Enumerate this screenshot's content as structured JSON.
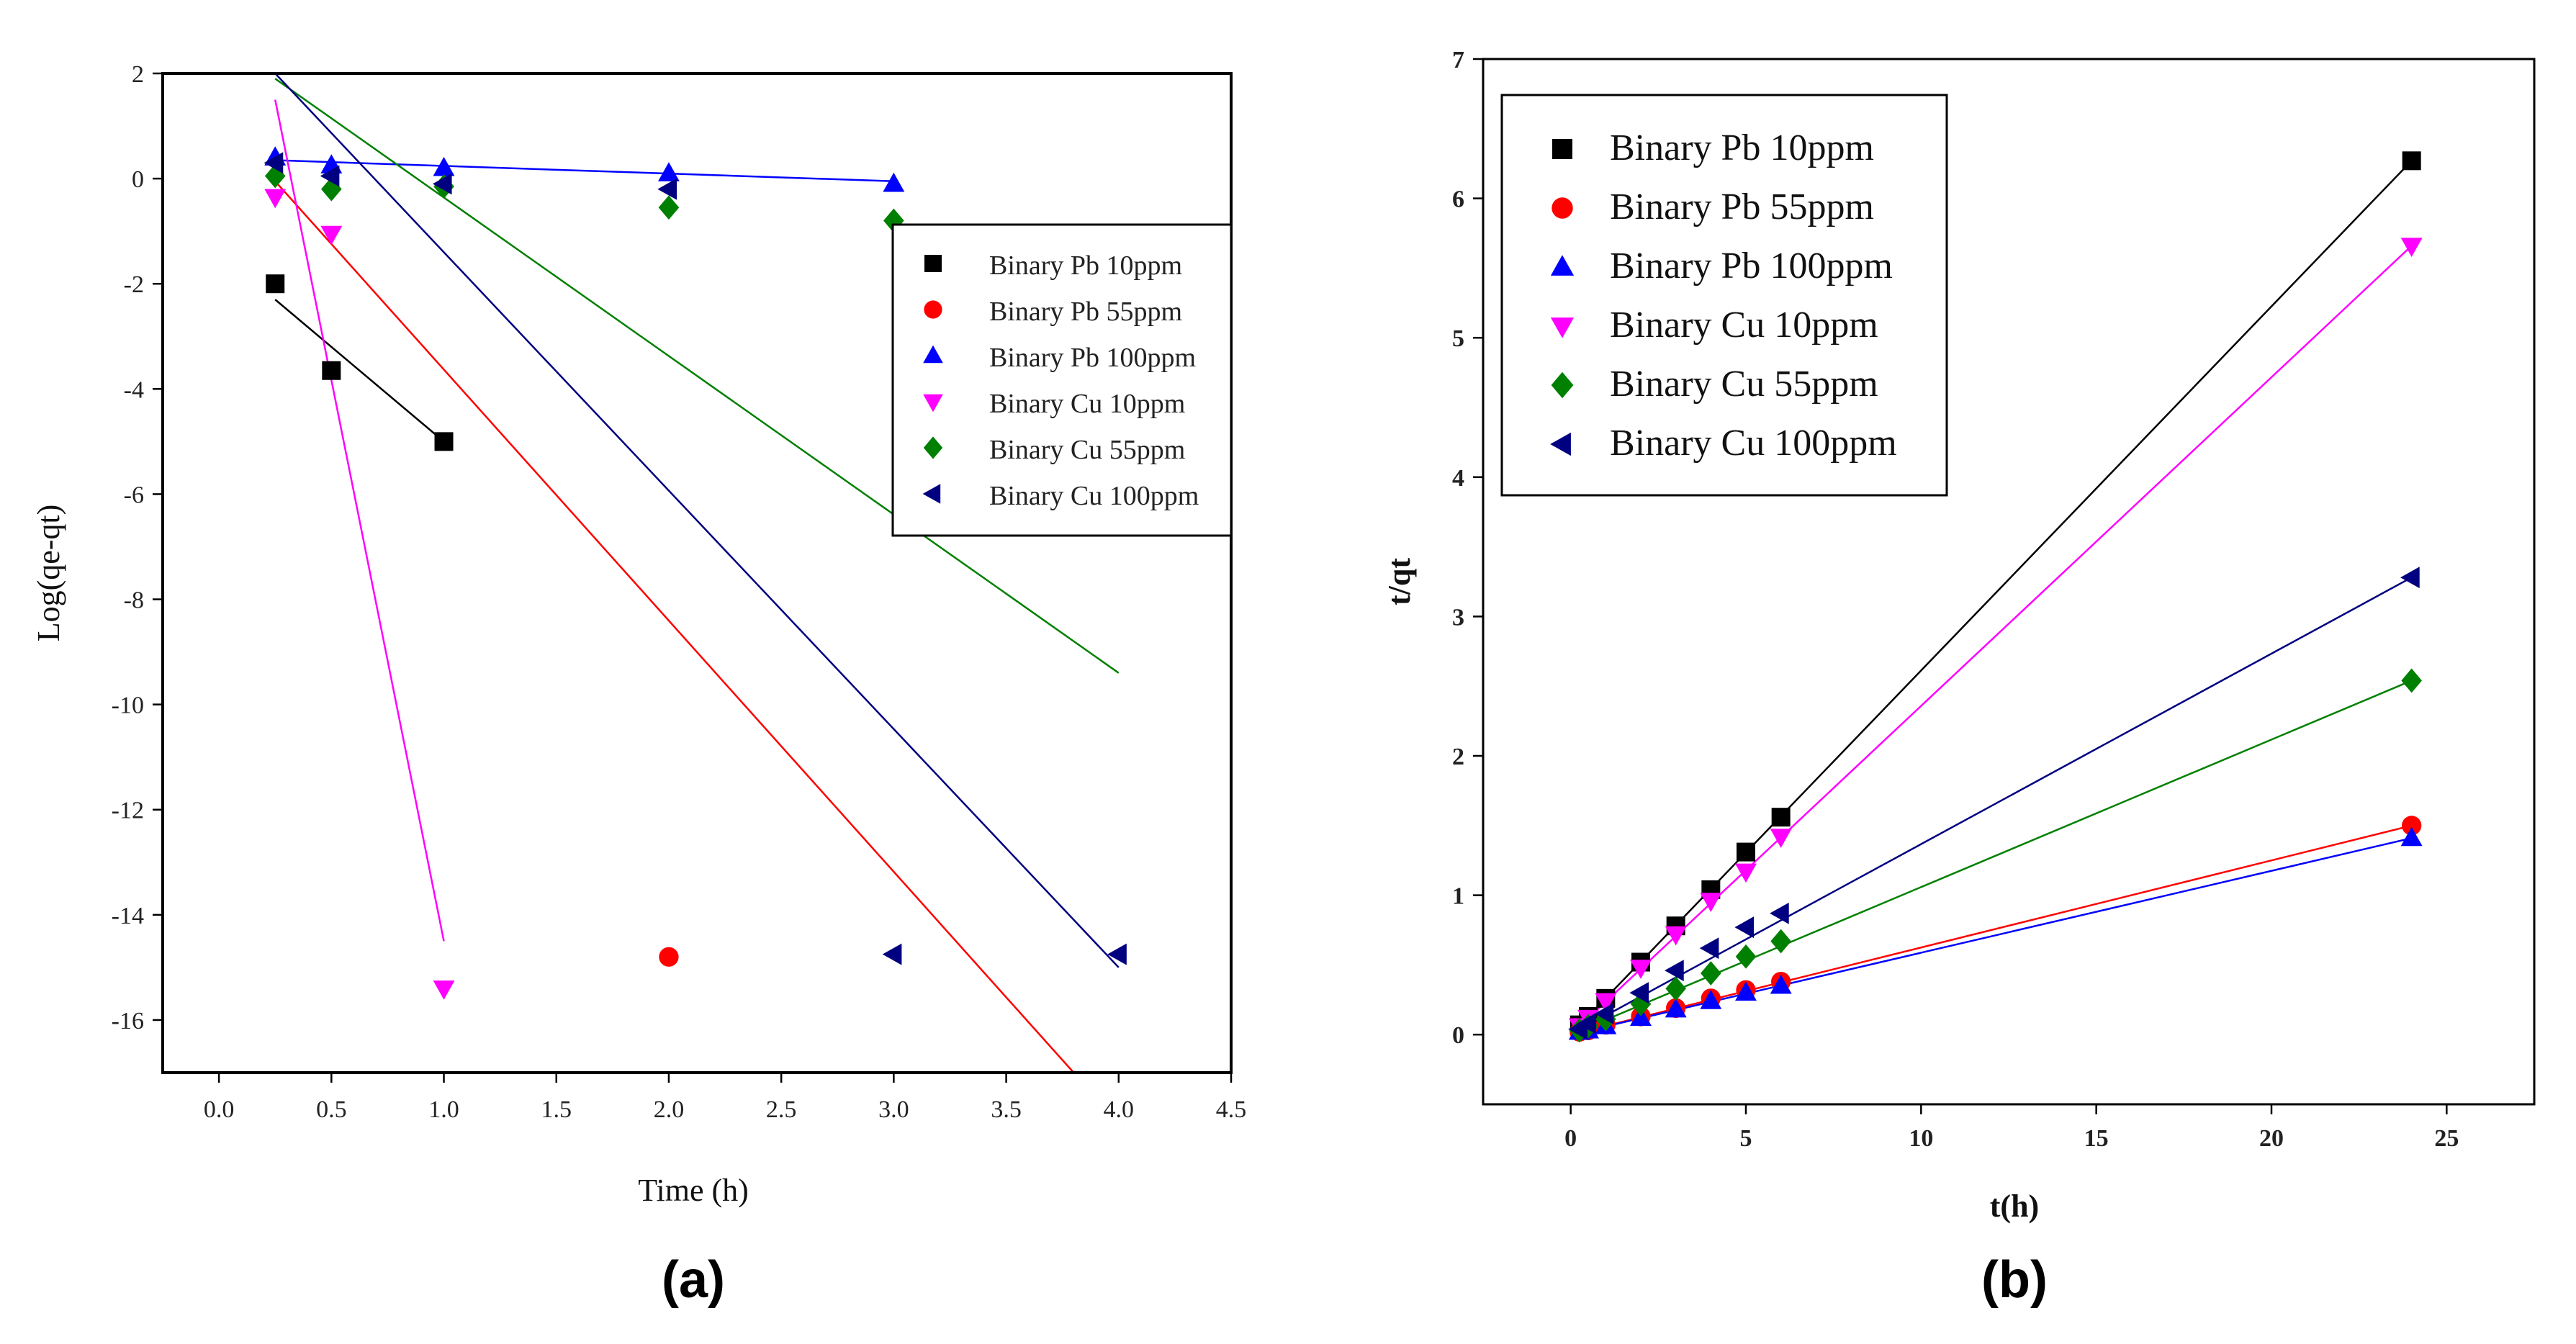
{
  "chart_data": [
    {
      "type": "scatter",
      "panel_label": "(a)",
      "xlabel": "Time (h)",
      "ylabel": "Log(qe-qt)",
      "xlim": [
        -0.25,
        4.5
      ],
      "ylim": [
        -17,
        2
      ],
      "xticks": [
        0.0,
        0.5,
        1.0,
        1.5,
        2.0,
        2.5,
        3.0,
        3.5,
        4.0,
        4.5
      ],
      "xtick_labels": [
        "0.0",
        "0.5",
        "1.0",
        "1.5",
        "2.0",
        "2.5",
        "3.0",
        "3.5",
        "4.0",
        "4.5"
      ],
      "yticks": [
        2,
        0,
        -2,
        -4,
        -6,
        -8,
        -10,
        -12,
        -14,
        -16
      ],
      "ytick_labels": [
        "2",
        "0",
        "-2",
        "-4",
        "-6",
        "-8",
        "-10",
        "-12",
        "-14",
        "-16"
      ],
      "legend_position": "right",
      "series": [
        {
          "name": "Binary Pb 10ppm",
          "color": "#000000",
          "marker": "square",
          "points": [
            [
              0.25,
              -2.0
            ],
            [
              0.5,
              -3.65
            ],
            [
              1.0,
              -5.0
            ]
          ],
          "fit": [
            [
              0.25,
              -2.3
            ],
            [
              1.0,
              -5.0
            ]
          ]
        },
        {
          "name": "Binary Pb 55ppm",
          "color": "#ff0000",
          "marker": "circle",
          "points": [
            [
              2.0,
              -14.8
            ]
          ],
          "fit": [
            [
              0.25,
              -0.05
            ],
            [
              3.8,
              -17.0
            ]
          ]
        },
        {
          "name": "Binary Pb 100ppm",
          "color": "#0000ff",
          "marker": "triangle-up",
          "points": [
            [
              0.25,
              0.4
            ],
            [
              0.5,
              0.25
            ],
            [
              1.0,
              0.2
            ],
            [
              2.0,
              0.1
            ],
            [
              3.0,
              -0.1
            ]
          ],
          "fit": [
            [
              0.25,
              0.35
            ],
            [
              3.0,
              -0.05
            ]
          ]
        },
        {
          "name": "Binary Cu 10ppm",
          "color": "#ff00ff",
          "marker": "triangle-down",
          "points": [
            [
              0.25,
              -0.35
            ],
            [
              0.5,
              -1.05
            ],
            [
              1.0,
              -15.4
            ]
          ],
          "fit": [
            [
              0.25,
              1.5
            ],
            [
              1.0,
              -14.5
            ]
          ]
        },
        {
          "name": "Binary Cu 55ppm",
          "color": "#008000",
          "marker": "diamond",
          "points": [
            [
              0.25,
              0.05
            ],
            [
              0.5,
              -0.2
            ],
            [
              1.0,
              -0.15
            ],
            [
              2.0,
              -0.55
            ],
            [
              3.0,
              -0.8
            ]
          ],
          "fit": [
            [
              0.25,
              1.9
            ],
            [
              4.0,
              -9.4
            ]
          ]
        },
        {
          "name": "Binary Cu 100ppm",
          "color": "#000080",
          "marker": "triangle-left",
          "points": [
            [
              0.25,
              0.3
            ],
            [
              0.5,
              0.05
            ],
            [
              1.0,
              -0.1
            ],
            [
              2.0,
              -0.2
            ],
            [
              3.0,
              -14.75
            ],
            [
              4.0,
              -14.75
            ]
          ],
          "fit": [
            [
              0.25,
              2.0
            ],
            [
              4.0,
              -15.0
            ]
          ]
        }
      ]
    },
    {
      "type": "scatter",
      "panel_label": "(b)",
      "xlabel": "t(h)",
      "ylabel": "t/qt",
      "xlim": [
        -2.5,
        27.5
      ],
      "ylim": [
        -0.5,
        7
      ],
      "xticks": [
        0,
        5,
        10,
        15,
        20,
        25
      ],
      "xtick_labels": [
        "0",
        "5",
        "10",
        "15",
        "20",
        "25"
      ],
      "yticks": [
        0,
        1,
        2,
        3,
        4,
        5,
        6,
        7
      ],
      "ytick_labels": [
        "0",
        "1",
        "2",
        "3",
        "4",
        "5",
        "6",
        "7"
      ],
      "legend_position": "top-left",
      "series": [
        {
          "name": "Binary Pb 10ppm",
          "color": "#000000",
          "marker": "square",
          "points": [
            [
              0.25,
              0.07
            ],
            [
              0.5,
              0.13
            ],
            [
              1,
              0.26
            ],
            [
              2,
              0.52
            ],
            [
              3,
              0.78
            ],
            [
              4,
              1.04
            ],
            [
              5,
              1.31
            ],
            [
              6,
              1.56
            ],
            [
              24,
              6.27
            ]
          ],
          "fit": [
            [
              0,
              0.0
            ],
            [
              24,
              6.27
            ]
          ]
        },
        {
          "name": "Binary Pb 55ppm",
          "color": "#ff0000",
          "marker": "circle",
          "points": [
            [
              0.25,
              0.02
            ],
            [
              0.5,
              0.03
            ],
            [
              1,
              0.07
            ],
            [
              2,
              0.13
            ],
            [
              3,
              0.19
            ],
            [
              4,
              0.26
            ],
            [
              5,
              0.32
            ],
            [
              6,
              0.38
            ],
            [
              24,
              1.5
            ]
          ],
          "fit": [
            [
              0,
              0.0
            ],
            [
              24,
              1.5
            ]
          ]
        },
        {
          "name": "Binary Pb 100ppm",
          "color": "#0000ff",
          "marker": "triangle-up",
          "points": [
            [
              0.25,
              0.02
            ],
            [
              0.5,
              0.03
            ],
            [
              1,
              0.06
            ],
            [
              2,
              0.12
            ],
            [
              3,
              0.18
            ],
            [
              4,
              0.24
            ],
            [
              5,
              0.3
            ],
            [
              6,
              0.35
            ],
            [
              24,
              1.41
            ]
          ],
          "fit": [
            [
              0,
              0.0
            ],
            [
              24,
              1.41
            ]
          ]
        },
        {
          "name": "Binary Cu 10ppm",
          "color": "#ff00ff",
          "marker": "triangle-down",
          "points": [
            [
              0.25,
              0.06
            ],
            [
              0.5,
              0.12
            ],
            [
              1,
              0.24
            ],
            [
              2,
              0.48
            ],
            [
              3,
              0.72
            ],
            [
              4,
              0.96
            ],
            [
              5,
              1.17
            ],
            [
              6,
              1.42
            ],
            [
              24,
              5.66
            ]
          ],
          "fit": [
            [
              0,
              0.0
            ],
            [
              24,
              5.66
            ]
          ]
        },
        {
          "name": "Binary Cu 55ppm",
          "color": "#008000",
          "marker": "diamond",
          "points": [
            [
              0.25,
              0.03
            ],
            [
              0.5,
              0.06
            ],
            [
              1,
              0.11
            ],
            [
              2,
              0.22
            ],
            [
              3,
              0.33
            ],
            [
              4,
              0.44
            ],
            [
              5,
              0.56
            ],
            [
              6,
              0.67
            ],
            [
              24,
              2.54
            ]
          ],
          "fit": [
            [
              0,
              0.0
            ],
            [
              24,
              2.54
            ]
          ]
        },
        {
          "name": "Binary Cu 100ppm",
          "color": "#000080",
          "marker": "triangle-left",
          "points": [
            [
              0.25,
              0.04
            ],
            [
              0.5,
              0.08
            ],
            [
              1,
              0.15
            ],
            [
              2,
              0.3
            ],
            [
              3,
              0.46
            ],
            [
              4,
              0.62
            ],
            [
              5,
              0.77
            ],
            [
              6,
              0.87
            ],
            [
              24,
              3.28
            ]
          ],
          "fit": [
            [
              0,
              0.0
            ],
            [
              24,
              3.28
            ]
          ]
        }
      ]
    }
  ]
}
